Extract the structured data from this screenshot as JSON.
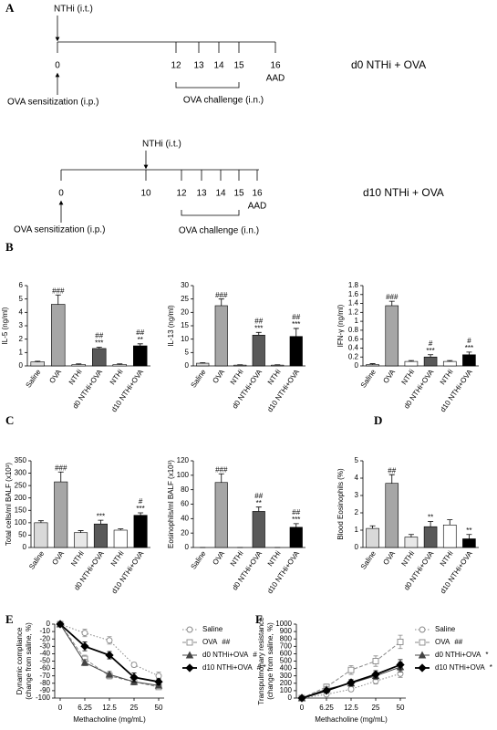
{
  "panel_labels": [
    "A",
    "B",
    "C",
    "D",
    "E",
    "F"
  ],
  "timelines": [
    {
      "agent": "NTHi (i.t.)",
      "days": [
        0,
        12,
        13,
        14,
        15,
        16
      ],
      "end_label": "AAD",
      "sensitization": "OVA sensitization (i.p.)",
      "challenge": "OVA challenge (i.n.)",
      "group": "d0 NTHi + OVA"
    },
    {
      "agent": "NTHi (i.t.)",
      "days": [
        0,
        10,
        12,
        13,
        14,
        15,
        16
      ],
      "end_label": "AAD",
      "sensitization": "OVA sensitization (i.p.)",
      "challenge": "OVA challenge (i.n.)",
      "group": "d10 NTHi + OVA"
    }
  ],
  "chart_data": [
    {
      "type": "bar",
      "ylabel": "IL-5 (ng/ml)",
      "categories": [
        "Saline",
        "OVA",
        "NTHi",
        "d0 NTHi+OVA",
        "NTHi",
        "d10 NTHi+OVA"
      ],
      "values": [
        0.3,
        4.6,
        0.1,
        1.3,
        0.1,
        1.5
      ],
      "errors": [
        0.05,
        0.7,
        0.05,
        0.1,
        0.05,
        0.15
      ],
      "annotations": [
        null,
        [
          "###"
        ],
        null,
        [
          "##",
          "***"
        ],
        null,
        [
          "##",
          "**"
        ]
      ],
      "colors": [
        "#d9d9d9",
        "#a6a6a6",
        "#ffffff",
        "#595959",
        "#ffffff",
        "#000000"
      ],
      "ylim": [
        0,
        6
      ],
      "yticks": [
        0,
        1,
        2,
        3,
        4,
        5,
        6
      ]
    },
    {
      "type": "bar",
      "ylabel": "IL-13 (ng/ml)",
      "categories": [
        "Saline",
        "OVA",
        "NTHi",
        "d0 NTHi+OVA",
        "NTHi",
        "d10 NTHi+OVA"
      ],
      "values": [
        1,
        22.5,
        0.3,
        11.5,
        0.3,
        11
      ],
      "errors": [
        0.2,
        2.5,
        0.1,
        1,
        0.1,
        3
      ],
      "annotations": [
        null,
        [
          "###"
        ],
        null,
        [
          "##",
          "***"
        ],
        null,
        [
          "##",
          "***"
        ]
      ],
      "colors": [
        "#d9d9d9",
        "#a6a6a6",
        "#ffffff",
        "#595959",
        "#ffffff",
        "#000000"
      ],
      "ylim": [
        0,
        30
      ],
      "yticks": [
        0,
        5,
        10,
        15,
        20,
        25,
        30
      ]
    },
    {
      "type": "bar",
      "ylabel": "IFN-γ (ng/ml)",
      "categories": [
        "Saline",
        "OVA",
        "NTHi",
        "d0 NTHi+OVA",
        "NTHi",
        "d10 NTHi+OVA"
      ],
      "values": [
        0.03,
        1.35,
        0.1,
        0.2,
        0.1,
        0.25
      ],
      "errors": [
        0.02,
        0.1,
        0.02,
        0.05,
        0.02,
        0.06
      ],
      "annotations": [
        null,
        [
          "###"
        ],
        null,
        [
          "#",
          "***"
        ],
        null,
        [
          "#",
          "***"
        ]
      ],
      "colors": [
        "#d9d9d9",
        "#a6a6a6",
        "#ffffff",
        "#595959",
        "#ffffff",
        "#000000"
      ],
      "ylim": [
        0,
        1.8
      ],
      "yticks": [
        0,
        0.2,
        0.4,
        0.6,
        0.8,
        1,
        1.2,
        1.4,
        1.6,
        1.8
      ]
    },
    {
      "type": "bar",
      "ylabel": "Total cells/ml BALF (x10³)",
      "categories": [
        "Saline",
        "OVA",
        "NTHi",
        "d0 NTHi+OVA",
        "NTHi",
        "d10 NTHi+OVA"
      ],
      "values": [
        100,
        265,
        60,
        95,
        70,
        130
      ],
      "errors": [
        8,
        40,
        8,
        15,
        5,
        10
      ],
      "annotations": [
        null,
        [
          "###"
        ],
        null,
        [
          "***"
        ],
        null,
        [
          "#",
          "***"
        ]
      ],
      "colors": [
        "#d9d9d9",
        "#a6a6a6",
        "#e8e8e8",
        "#595959",
        "#ffffff",
        "#000000"
      ],
      "ylim": [
        0,
        350
      ],
      "yticks": [
        0,
        50,
        100,
        150,
        200,
        250,
        300,
        350
      ]
    },
    {
      "type": "bar",
      "ylabel": "Eosinophils/ml BALF (x10³)",
      "categories": [
        "Saline",
        "OVA",
        "NTHi",
        "d0 NTHi+OVA",
        "NTHi",
        "d10 NTHi+OVA"
      ],
      "values": [
        0,
        90,
        0,
        50,
        0,
        28
      ],
      "errors": [
        0,
        12,
        0,
        6,
        0,
        5
      ],
      "annotations": [
        null,
        [
          "###"
        ],
        null,
        [
          "##",
          "**"
        ],
        null,
        [
          "##",
          "***"
        ]
      ],
      "colors": [
        "#d9d9d9",
        "#a6a6a6",
        "#e8e8e8",
        "#595959",
        "#ffffff",
        "#000000"
      ],
      "ylim": [
        0,
        120
      ],
      "yticks": [
        0,
        20,
        40,
        60,
        80,
        100,
        120
      ]
    },
    {
      "type": "bar",
      "ylabel": "Blood Eosinophils (%)",
      "categories": [
        "Saline",
        "OVA",
        "NTHi",
        "d0 NTHi+OVA",
        "NTHi",
        "d10 NTHi+OVA"
      ],
      "values": [
        1.1,
        3.7,
        0.6,
        1.2,
        1.3,
        0.5
      ],
      "errors": [
        0.15,
        0.5,
        0.15,
        0.3,
        0.3,
        0.25
      ],
      "annotations": [
        null,
        [
          "##"
        ],
        null,
        [
          "**"
        ],
        null,
        [
          "**"
        ]
      ],
      "colors": [
        "#d9d9d9",
        "#a6a6a6",
        "#e8e8e8",
        "#595959",
        "#ffffff",
        "#000000"
      ],
      "ylim": [
        0,
        5
      ],
      "yticks": [
        0,
        1,
        2,
        3,
        4,
        5
      ]
    },
    {
      "type": "line",
      "ylabel": [
        "Dynamic compliance",
        "(change from saline, %)"
      ],
      "xlabel": "Methacholine (mg/mL)",
      "categories": [
        "0",
        "6.25",
        "12.5",
        "25",
        "50"
      ],
      "series": [
        {
          "name": "Saline",
          "color": "#888888",
          "line_style": "dotted",
          "marker": "circle",
          "filled": false,
          "values": [
            0,
            -12,
            -22,
            -55,
            -70
          ],
          "errors": [
            0,
            5,
            5,
            3,
            5
          ]
        },
        {
          "name": "OVA",
          "note": "##",
          "color": "#888888",
          "line_style": "dashed",
          "marker": "square",
          "filled": false,
          "values": [
            0,
            -47,
            -70,
            -78,
            -85
          ],
          "errors": [
            0,
            5,
            4,
            3,
            3
          ]
        },
        {
          "name": "d0 NTHi+OVA",
          "note": "#",
          "color": "#444444",
          "line_style": "solid",
          "marker": "triangle",
          "filled": true,
          "values": [
            0,
            -52,
            -68,
            -78,
            -83
          ],
          "errors": [
            0,
            4,
            4,
            4,
            3
          ]
        },
        {
          "name": "d10 NTHi+OVA",
          "note": "# *",
          "color": "#000000",
          "line_style": "solid",
          "marker": "diamond",
          "filled": true,
          "values": [
            0,
            -30,
            -42,
            -72,
            -78
          ],
          "errors": [
            0,
            6,
            5,
            6,
            4
          ]
        }
      ],
      "ylim": [
        -100,
        0
      ],
      "yticks": [
        0,
        -10,
        -20,
        -30,
        -40,
        -50,
        -60,
        -70,
        -80,
        -90,
        -100
      ]
    },
    {
      "type": "line",
      "ylabel": [
        "Transpulmonary resistance",
        "(change from saline, %)"
      ],
      "xlabel": "Methacholine (mg/mL)",
      "categories": [
        "0",
        "6.25",
        "12.5",
        "25",
        "50"
      ],
      "series": [
        {
          "name": "Saline",
          "color": "#888888",
          "line_style": "dotted",
          "marker": "circle",
          "filled": false,
          "values": [
            0,
            50,
            120,
            230,
            330
          ],
          "errors": [
            0,
            20,
            30,
            40,
            50
          ]
        },
        {
          "name": "OVA",
          "note": "##",
          "color": "#888888",
          "line_style": "dashed",
          "marker": "square",
          "filled": false,
          "values": [
            0,
            150,
            380,
            500,
            760
          ],
          "errors": [
            0,
            40,
            60,
            70,
            90
          ]
        },
        {
          "name": "d0 NTHi+OVA",
          "note": "*",
          "color": "#444444",
          "line_style": "solid",
          "marker": "triangle",
          "filled": true,
          "values": [
            0,
            120,
            200,
            300,
            420
          ],
          "errors": [
            0,
            30,
            40,
            50,
            70
          ]
        },
        {
          "name": "d10 NTHi+OVA",
          "note": "*",
          "color": "#000000",
          "line_style": "solid",
          "marker": "diamond",
          "filled": true,
          "values": [
            0,
            100,
            210,
            320,
            450
          ],
          "errors": [
            0,
            30,
            40,
            50,
            70
          ]
        }
      ],
      "ylim": [
        0,
        1000
      ],
      "yticks": [
        0,
        100,
        200,
        300,
        400,
        500,
        600,
        700,
        800,
        900,
        1000
      ]
    }
  ]
}
